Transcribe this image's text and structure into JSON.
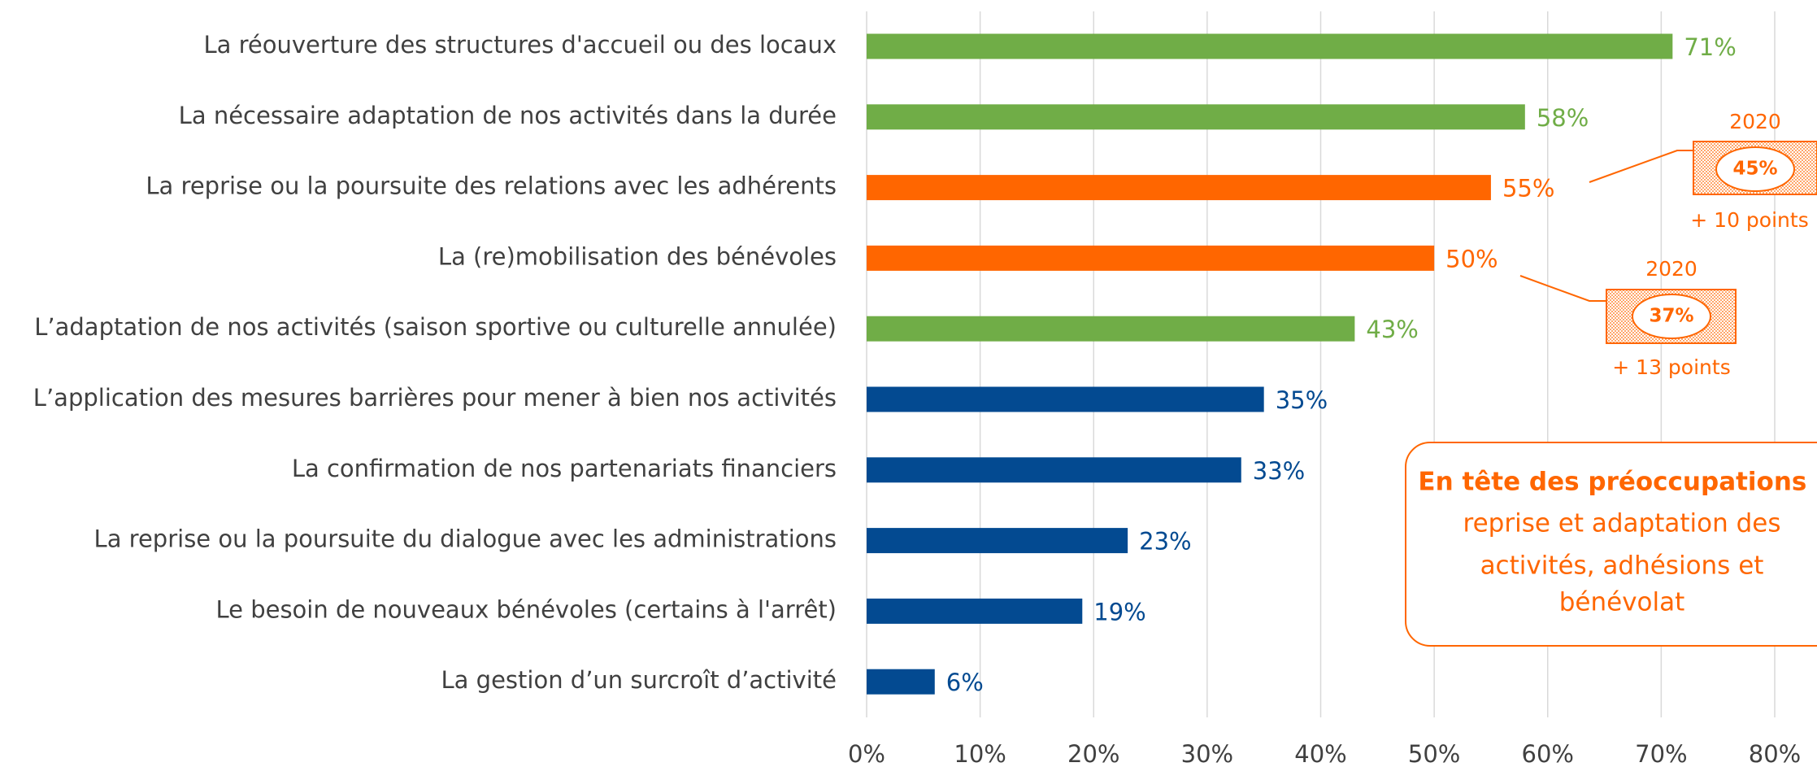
{
  "chart_data": {
    "type": "bar",
    "orientation": "horizontal",
    "categories": [
      "La réouverture des structures d'accueil ou des locaux",
      "La nécessaire adaptation de nos activités dans la durée",
      "La reprise ou la poursuite des relations avec les adhérents",
      "La (re)mobilisation des bénévoles",
      "L’adaptation de nos activités (saison sportive ou culturelle annulée)",
      "L’application des mesures barrières pour mener à bien nos activités",
      "La confirmation de nos partenariats financiers",
      "La reprise ou la poursuite du dialogue avec les administrations",
      "Le besoin de nouveaux bénévoles (certains à l'arrêt)",
      "La gestion d’un surcroît d’activité"
    ],
    "values": [
      71,
      58,
      55,
      50,
      43,
      35,
      33,
      23,
      19,
      6
    ],
    "value_labels": [
      "71%",
      "58%",
      "55%",
      "50%",
      "43%",
      "35%",
      "33%",
      "23%",
      "19%",
      "6%"
    ],
    "colors": [
      "#70ad47",
      "#70ad47",
      "#ff6600",
      "#ff6600",
      "#70ad47",
      "#034a91",
      "#034a91",
      "#034a91",
      "#034a91",
      "#034a91"
    ],
    "xlim": [
      0,
      80
    ],
    "xticks": [
      {
        "value": 0,
        "label": "0%"
      },
      {
        "value": 10,
        "label": "10%"
      },
      {
        "value": 20,
        "label": "20%"
      },
      {
        "value": 30,
        "label": "30%"
      },
      {
        "value": 40,
        "label": "40%"
      },
      {
        "value": 50,
        "label": "50%"
      },
      {
        "value": 60,
        "label": "60%"
      },
      {
        "value": 70,
        "label": "70%"
      },
      {
        "value": 80,
        "label": "80%"
      }
    ],
    "grid": true,
    "annotations": [
      {
        "year": "2020",
        "value": "45%",
        "change": "+ 10 points"
      },
      {
        "year": "2020",
        "value": "37%",
        "change": "+ 13 points"
      }
    ],
    "note": {
      "title": "En tête des préoccupations :",
      "lines": [
        "reprise et adaptation des",
        "activités, adhésions et",
        "bénévolat"
      ]
    }
  }
}
